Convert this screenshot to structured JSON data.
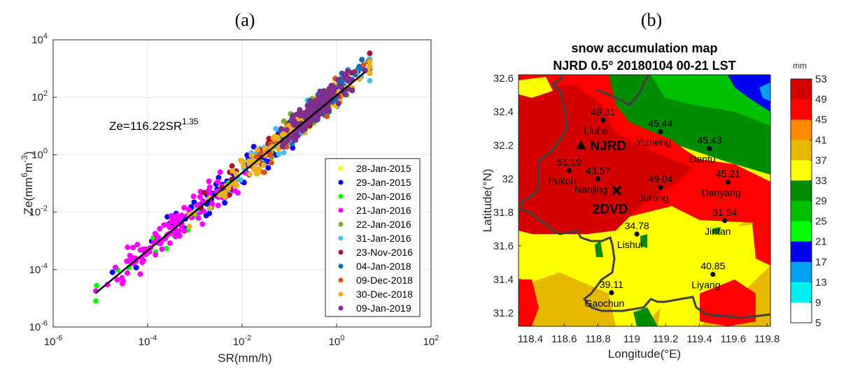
{
  "chart_data": [
    {
      "type": "scatter",
      "panel_label": "(a)",
      "xlabel": "SR(mm/h)",
      "ylabel_base": "Ze(mm",
      "ylabel_sup1": "6",
      "ylabel_mid": "m",
      "ylabel_sup2": "-3",
      "ylabel_end": ")",
      "xscale": "log",
      "yscale": "log",
      "xlim": [
        1e-06,
        100
      ],
      "ylim": [
        1e-06,
        10000
      ],
      "x_ticks": [
        {
          "base": "10",
          "exp": "-6"
        },
        {
          "base": "10",
          "exp": "-4"
        },
        {
          "base": "10",
          "exp": "-2"
        },
        {
          "base": "10",
          "exp": "0"
        },
        {
          "base": "10",
          "exp": "2"
        }
      ],
      "y_ticks": [
        {
          "base": "10",
          "exp": "4"
        },
        {
          "base": "10",
          "exp": "2"
        },
        {
          "base": "10",
          "exp": "0"
        },
        {
          "base": "10",
          "exp": "-2"
        },
        {
          "base": "10",
          "exp": "-4"
        },
        {
          "base": "10",
          "exp": "-6"
        }
      ],
      "grid": true,
      "fit": {
        "equation_base": "Ze=116.22SR",
        "equation_exp": "1.35",
        "a": 116.22,
        "b": 1.35,
        "x_range": [
          8e-06,
          4.0
        ],
        "color": "#000000"
      },
      "legend_position": "lower-right",
      "series": [
        {
          "name": "28-Jan-2015",
          "color": "#FFFF00",
          "center_log_x": -0.5,
          "spread": 1.0,
          "n": 8
        },
        {
          "name": "29-Jan-2015",
          "color": "#0000FF",
          "center_log_x": -2.2,
          "spread": 4.0,
          "n": 90
        },
        {
          "name": "20-Jan-2016",
          "color": "#00FF00",
          "center_log_x": -3.5,
          "spread": 3.0,
          "n": 14
        },
        {
          "name": "21-Jan-2016",
          "color": "#FF00FF",
          "center_log_x": -3.3,
          "spread": 3.2,
          "n": 110
        },
        {
          "name": "22-Jan-2016",
          "color": "#77AC30",
          "center_log_x": -0.8,
          "spread": 2.5,
          "n": 22
        },
        {
          "name": "31-Jan-2016",
          "color": "#4DBEEE",
          "center_log_x": -1.2,
          "spread": 4.0,
          "n": 45
        },
        {
          "name": "23-Nov-2016",
          "color": "#A2142F",
          "center_log_x": -1.5,
          "spread": 4.0,
          "n": 45
        },
        {
          "name": "04-Jan-2018",
          "color": "#0072BD",
          "center_log_x": -0.3,
          "spread": 2.2,
          "n": 70
        },
        {
          "name": "09-Dec-2018",
          "color": "#D95319",
          "center_log_x": -0.8,
          "spread": 3.0,
          "n": 45
        },
        {
          "name": "30-Dec-2018",
          "color": "#EDB120",
          "center_log_x": -1.0,
          "spread": 3.5,
          "n": 90
        },
        {
          "name": "09-Jan-2019",
          "color": "#7E2F8E",
          "center_log_x": -0.4,
          "spread": 1.6,
          "n": 130
        }
      ]
    },
    {
      "type": "heatmap",
      "panel_label": "(b)",
      "title_line1": "snow accumulation map",
      "title_line2": "NJRD  0.5°  20180104 00-21 LST",
      "xlabel": "Longitude(°E)",
      "ylabel": "Latitude(°N)",
      "xlim": [
        118.33,
        119.82
      ],
      "ylim": [
        31.12,
        32.62
      ],
      "x_ticks": [
        "118.4",
        "118.6",
        "118.8",
        "119",
        "119.2",
        "119.4",
        "119.6",
        "119.8"
      ],
      "y_ticks": [
        "32.6",
        "32.4",
        "32.2",
        "32",
        "31.8",
        "31.6",
        "31.4",
        "31.2"
      ],
      "colorbar": {
        "unit": "mm",
        "levels": [
          "53",
          "49",
          "45",
          "41",
          "37",
          "33",
          "29",
          "25",
          "21",
          "17",
          "13",
          "9",
          "5"
        ],
        "colors": [
          "#D40000",
          "#FF0000",
          "#FF8C00",
          "#E6B800",
          "#FFFF00",
          "#008C00",
          "#00C000",
          "#00FF00",
          "#0000F0",
          "#00A0F0",
          "#00F0F0",
          "#FFFFFF"
        ]
      },
      "stations": [
        {
          "name": "Liuhe",
          "value": "49.31",
          "lon": 118.83,
          "lat": 32.35
        },
        {
          "name": "Yizheng",
          "value": "45.44",
          "lon": 119.17,
          "lat": 32.28
        },
        {
          "name": "Dantu",
          "value": "45.43",
          "lon": 119.46,
          "lat": 32.18
        },
        {
          "name": "Pukou",
          "value": "51.19",
          "lon": 118.63,
          "lat": 32.05
        },
        {
          "name": "Nanjing",
          "value": "43.57",
          "lon": 118.8,
          "lat": 32.0
        },
        {
          "name": "Jurong",
          "value": "49.04",
          "lon": 119.17,
          "lat": 31.95
        },
        {
          "name": "Danyang",
          "value": "45.21",
          "lon": 119.57,
          "lat": 31.98
        },
        {
          "name": "Jintan",
          "value": "31.54",
          "lon": 119.55,
          "lat": 31.75
        },
        {
          "name": "Lishui",
          "value": "34.78",
          "lon": 119.03,
          "lat": 31.67
        },
        {
          "name": "Liyang",
          "value": "40.85",
          "lon": 119.48,
          "lat": 31.43
        },
        {
          "name": "Gaochun",
          "value": "39.11",
          "lon": 118.88,
          "lat": 31.32
        }
      ],
      "markers": [
        {
          "name": "NJRD",
          "symbol": "triangle",
          "lon": 118.7,
          "lat": 32.2
        },
        {
          "name": "2DVD",
          "symbol": "cross",
          "lon": 118.91,
          "lat": 31.93
        }
      ]
    }
  ]
}
